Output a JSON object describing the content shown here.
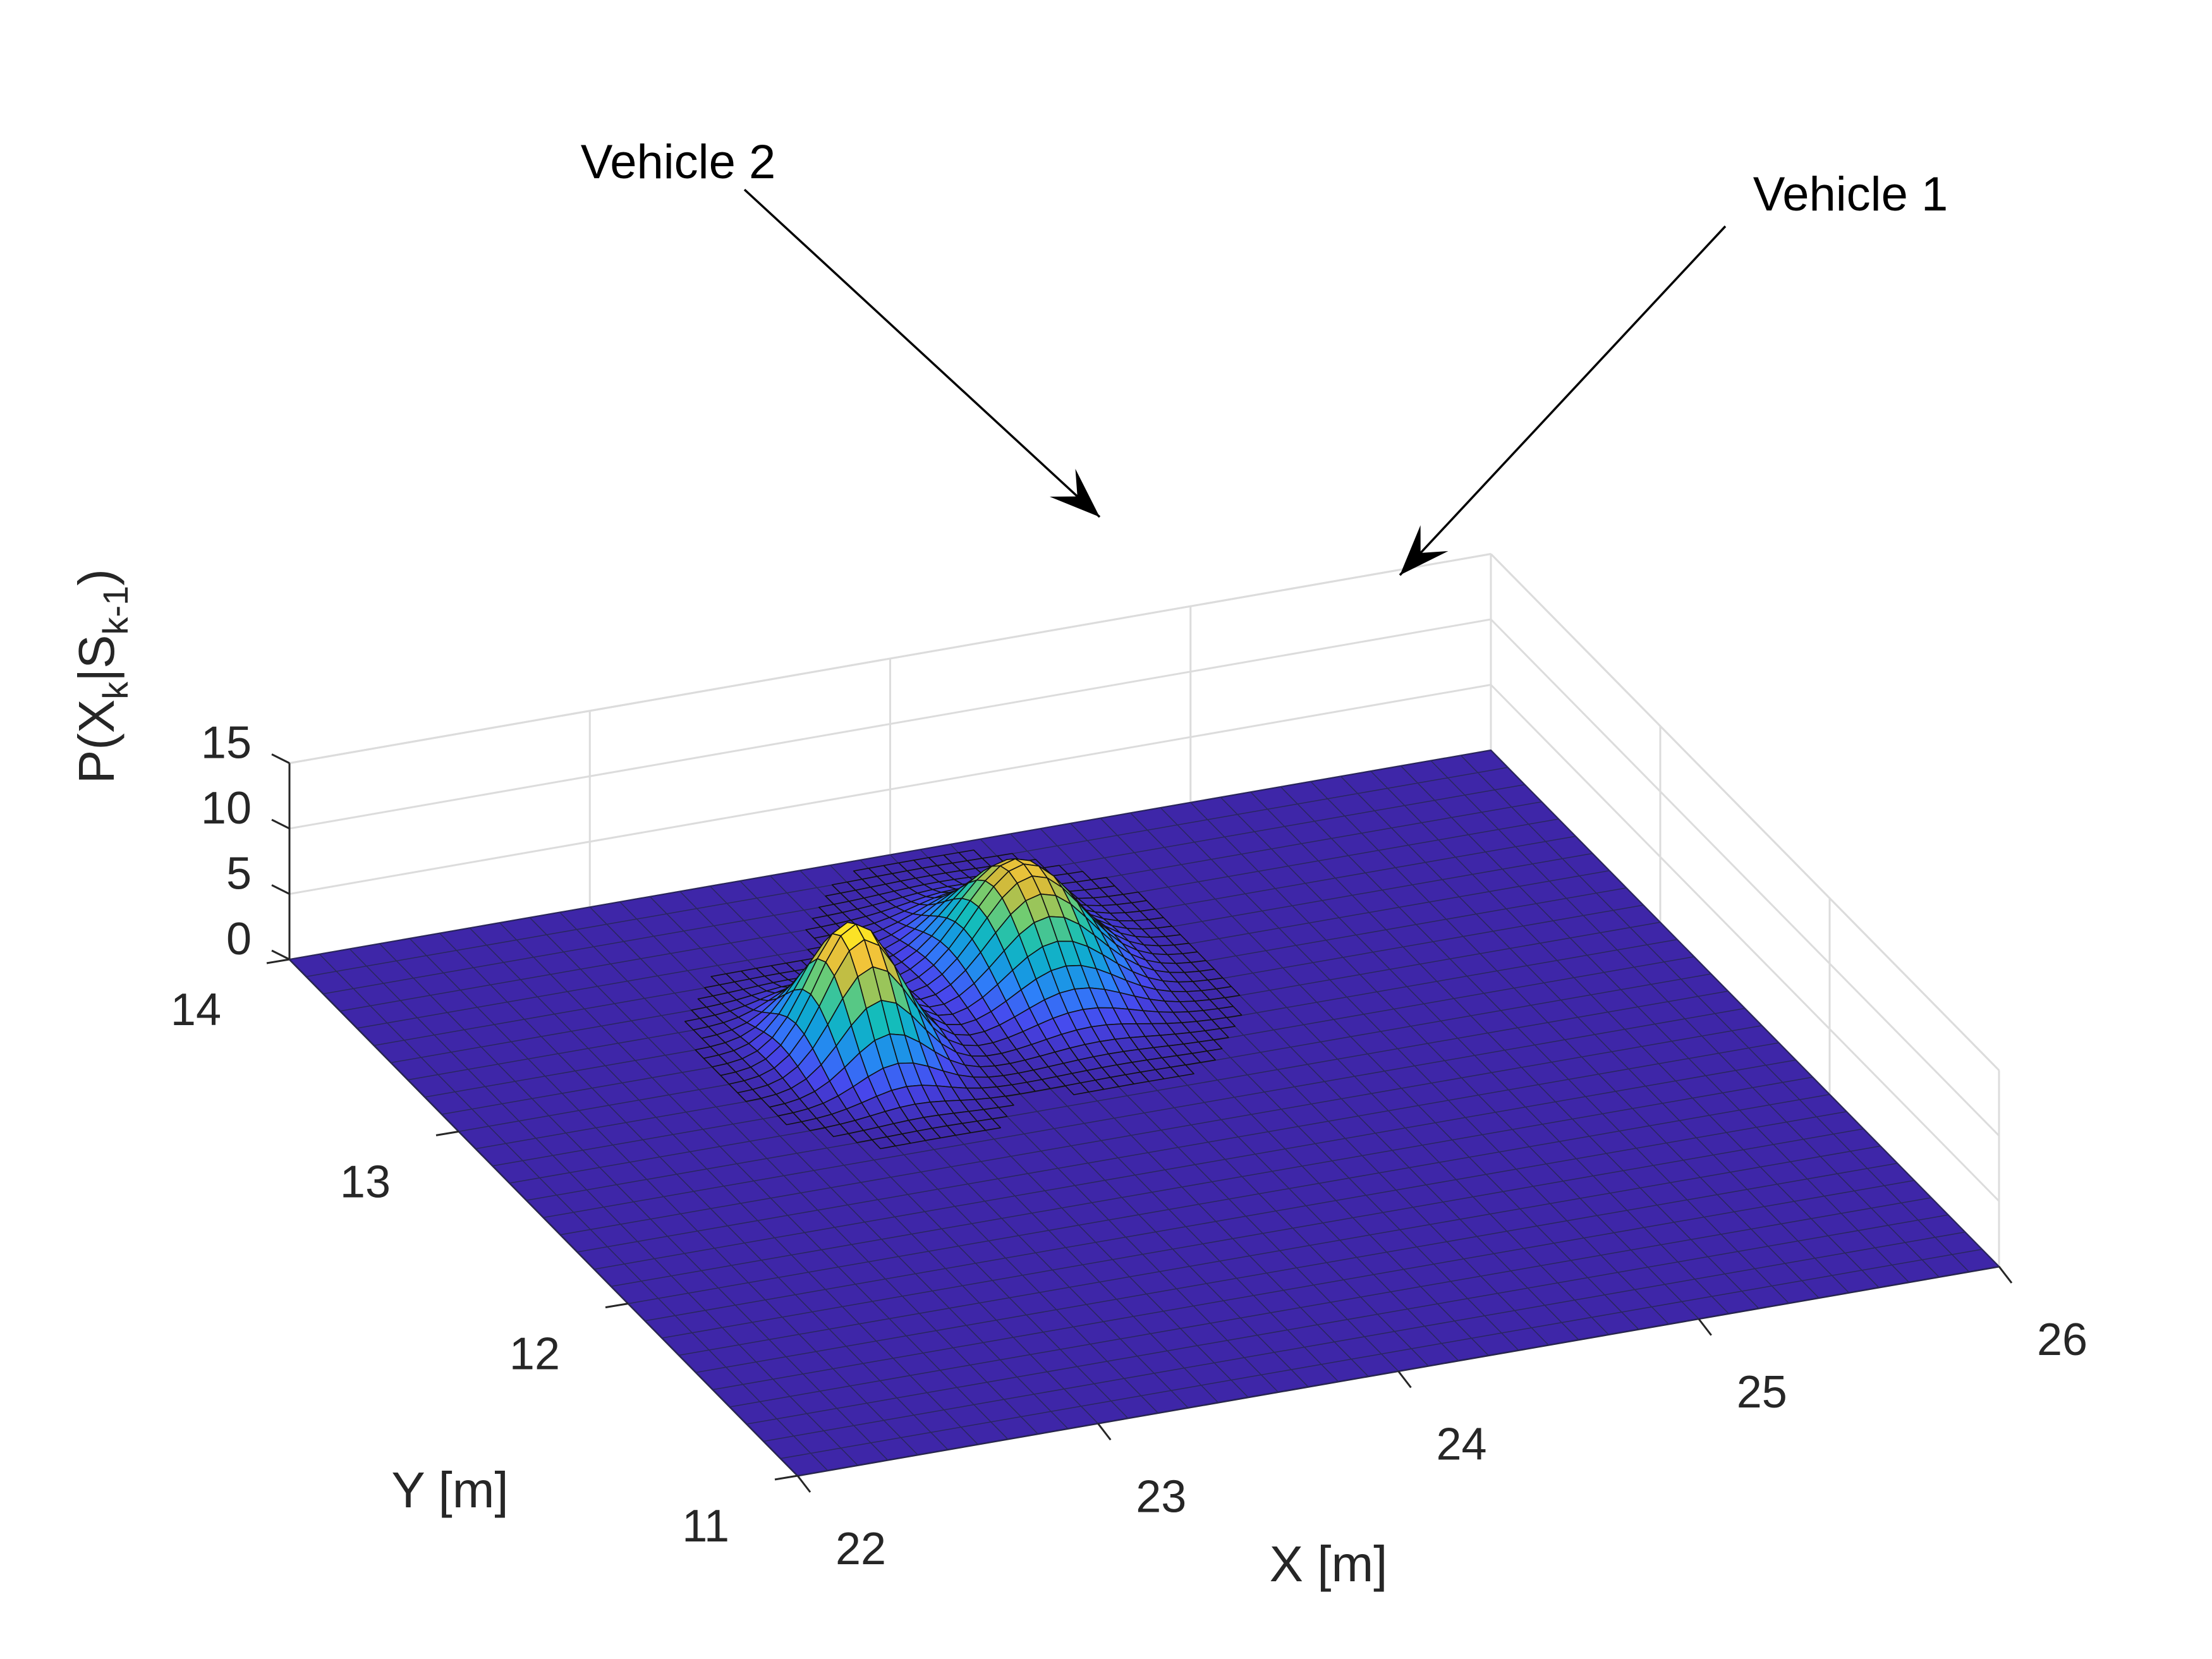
{
  "chart_data": {
    "type": "surface",
    "title": "",
    "xlabel": "X [m]",
    "ylabel": "Y [m]",
    "zlabel": {
      "base": "P(X",
      "sub1": "k",
      "mid": "|S",
      "sub2": "k-1",
      "end": ")"
    },
    "xlim": [
      22,
      26
    ],
    "ylim": [
      11,
      14
    ],
    "zlim": [
      0,
      15
    ],
    "x_ticks": [
      22,
      23,
      24,
      25,
      26
    ],
    "y_ticks": [
      11,
      12,
      13,
      14
    ],
    "z_ticks": [
      0,
      5,
      10,
      15
    ],
    "grid": true,
    "colormap": "parula",
    "peaks": [
      {
        "x": 23.35,
        "y": 13.05,
        "height": 9.8,
        "sigma_x": 0.13,
        "sigma_y": 0.15
      },
      {
        "x": 24.05,
        "y": 13.3,
        "height": 8.3,
        "sigma_x": 0.17,
        "sigma_y": 0.2
      }
    ],
    "annotations": [
      {
        "text": "Vehicle 2",
        "target": "peak-1"
      },
      {
        "text": "Vehicle 1",
        "target": "peak-2"
      }
    ]
  }
}
